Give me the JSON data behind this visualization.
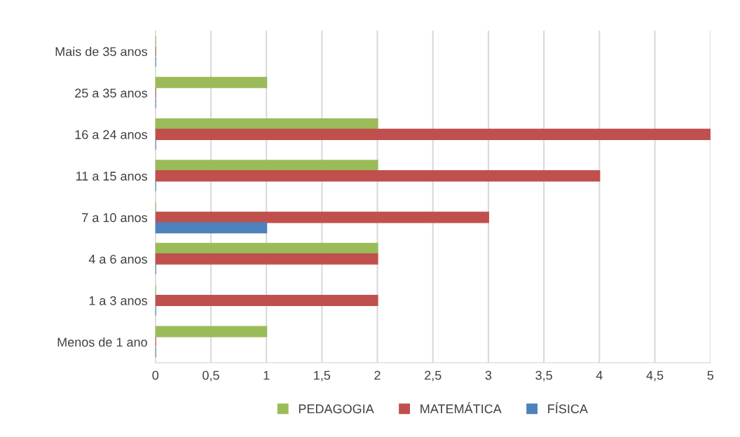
{
  "chart_data": {
    "type": "bar",
    "orientation": "horizontal",
    "categories": [
      "Mais de 35 anos",
      "25 a 35 anos",
      "16 a 24 anos",
      "11 a 15 anos",
      "7 a 10 anos",
      "4 a 6 anos",
      "1 a 3 anos",
      "Menos de 1 ano"
    ],
    "series": [
      {
        "name": "PEDAGOGIA",
        "color": "#9bbb59",
        "values": [
          0,
          1,
          2,
          2,
          0,
          2,
          0,
          1
        ]
      },
      {
        "name": "MATEMÁTICA",
        "color": "#c0504d",
        "values": [
          0,
          0,
          5,
          4,
          3,
          2,
          2,
          0
        ]
      },
      {
        "name": "FÍSICA",
        "color": "#4f81bd",
        "values": [
          0,
          0,
          0,
          0,
          1,
          0,
          0,
          0
        ]
      }
    ],
    "xlim": [
      0,
      5
    ],
    "xticks": [
      0,
      {
        "value": 0.5,
        "label": "0,5"
      },
      1,
      {
        "value": 1.5,
        "label": "1,5"
      },
      2,
      {
        "value": 2.5,
        "label": "2,5"
      },
      3,
      {
        "value": 3.5,
        "label": "3,5"
      },
      4,
      {
        "value": 4.5,
        "label": "4,5"
      },
      5
    ],
    "grid": "x",
    "legend": "bottom"
  }
}
